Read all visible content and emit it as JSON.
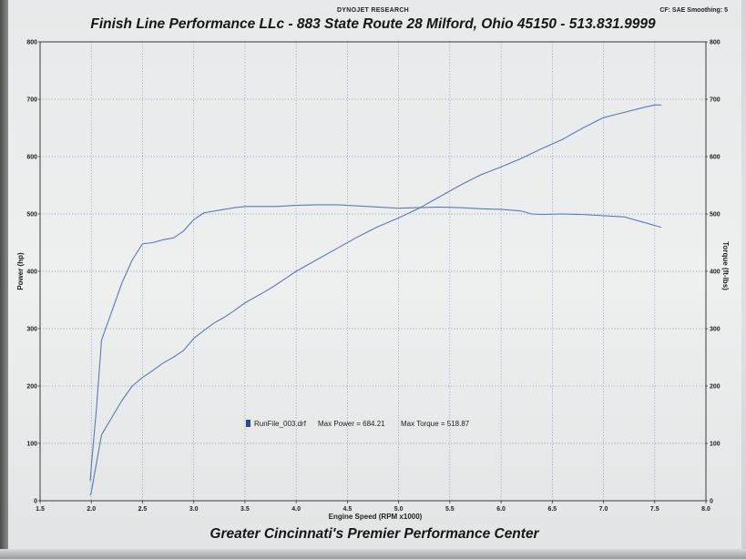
{
  "header": {
    "brand": "DYNOJET RESEARCH",
    "settings": "CF: SAE  Smoothing: 5"
  },
  "title": "Finish Line Performance LLc - 883 State Route 28 Milford, Ohio 45150 - 513.831.9999",
  "footer": "Greater Cincinnati's Premier Performance Center",
  "legend": {
    "run_file": "RunFile_003.drf",
    "max_power_label": "Max Power = 684.21",
    "max_torque_label": "Max Torque = 518.87"
  },
  "colors": {
    "curve": "#5b79b5",
    "grid": "#4f6fb0",
    "legend_swatch": "#2b4a8f"
  },
  "chart_data": {
    "type": "line",
    "title": "",
    "xlabel": "Engine Speed (RPM x1000)",
    "ylabel": "Power (hp)",
    "y2label": "Torque (ft-lbs)",
    "xlim": [
      1.5,
      8.0
    ],
    "ylim": [
      0,
      800
    ],
    "y2lim": [
      0,
      800
    ],
    "x_ticks": [
      1.5,
      2.0,
      2.5,
      3.0,
      3.5,
      4.0,
      4.5,
      5.0,
      5.5,
      6.0,
      6.5,
      7.0,
      7.5,
      8.0
    ],
    "y_ticks": [
      0,
      100,
      200,
      300,
      400,
      500,
      600,
      700,
      800
    ],
    "y2_ticks": [
      0,
      100,
      200,
      300,
      400,
      500,
      600,
      700,
      800
    ],
    "grid": true,
    "series": [
      {
        "name": "Power (hp)",
        "x": [
          1.99,
          2.0,
          2.03,
          2.1,
          2.2,
          2.3,
          2.4,
          2.5,
          2.6,
          2.7,
          2.8,
          2.9,
          3.0,
          3.1,
          3.2,
          3.3,
          3.4,
          3.5,
          3.6,
          3.7,
          3.8,
          3.9,
          4.0,
          4.2,
          4.4,
          4.6,
          4.8,
          5.0,
          5.2,
          5.4,
          5.6,
          5.8,
          6.0,
          6.2,
          6.4,
          6.6,
          6.8,
          7.0,
          7.2,
          7.4,
          7.5,
          7.56
        ],
        "values": [
          10,
          15,
          45,
          115,
          145,
          175,
          200,
          215,
          227,
          240,
          250,
          262,
          283,
          297,
          310,
          320,
          332,
          345,
          355,
          365,
          376,
          388,
          400,
          420,
          440,
          460,
          478,
          493,
          510,
          530,
          550,
          568,
          582,
          597,
          614,
          630,
          650,
          668,
          677,
          686,
          690,
          690
        ]
      },
      {
        "name": "Torque (ft-lbs)",
        "x": [
          1.99,
          2.0,
          2.05,
          2.1,
          2.2,
          2.3,
          2.4,
          2.5,
          2.6,
          2.7,
          2.8,
          2.9,
          3.0,
          3.1,
          3.2,
          3.3,
          3.4,
          3.5,
          3.6,
          3.8,
          4.0,
          4.2,
          4.4,
          4.6,
          4.8,
          5.0,
          5.2,
          5.4,
          5.6,
          5.8,
          6.0,
          6.2,
          6.3,
          6.4,
          6.6,
          6.8,
          7.0,
          7.2,
          7.4,
          7.56
        ],
        "values": [
          35,
          60,
          160,
          280,
          330,
          380,
          420,
          448,
          450,
          455,
          458,
          470,
          490,
          502,
          505,
          508,
          511,
          513,
          513,
          513,
          515,
          516,
          516,
          514,
          512,
          510,
          511,
          512,
          511,
          509,
          508,
          505,
          500,
          499,
          500,
          499,
          497,
          495,
          485,
          477
        ]
      }
    ]
  }
}
